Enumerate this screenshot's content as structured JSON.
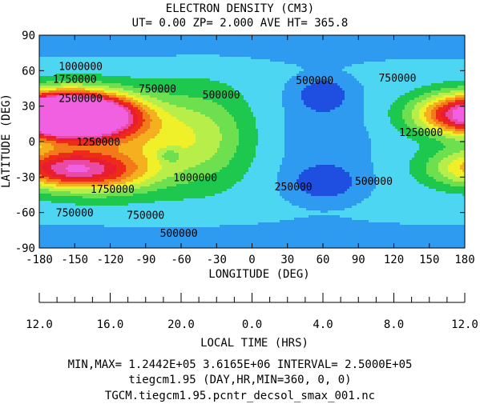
{
  "title": "ELECTRON DENSITY (CM3)",
  "subtitle": "UT= 0.00 ZP=  2.000 AVE HT= 365.8",
  "chart_data": {
    "type": "contour",
    "ylabel": "LATITUDE (DEG)",
    "xlabel": "LONGITUDE (DEG)",
    "xlim": [
      -180,
      180
    ],
    "ylim": [
      -90,
      90
    ],
    "x_ticks": [
      "-180",
      "-150",
      "-120",
      "-90",
      "-60",
      "-30",
      "0",
      "30",
      "60",
      "90",
      "120",
      "150",
      "180"
    ],
    "y_ticks": [
      "90",
      "60",
      "30",
      "0",
      "-30",
      "-60",
      "-90"
    ],
    "lt_label": "LOCAL TIME (HRS)",
    "lt_ticks": [
      "12.0",
      "16.0",
      "20.0",
      "0.0",
      "4.0",
      "8.0",
      "12.0"
    ],
    "contour_labels": [
      {
        "text": "1000000",
        "lon": -145,
        "lat": 64
      },
      {
        "text": "1750000",
        "lon": -150,
        "lat": 53
      },
      {
        "text": "2500000",
        "lon": -145,
        "lat": 37
      },
      {
        "text": "750000",
        "lon": -80,
        "lat": 45
      },
      {
        "text": "500000",
        "lon": -26,
        "lat": 40
      },
      {
        "text": "500000",
        "lon": 53,
        "lat": 52
      },
      {
        "text": "1250000",
        "lon": -130,
        "lat": 0
      },
      {
        "text": "1000000",
        "lon": -48,
        "lat": -30
      },
      {
        "text": "1750000",
        "lon": -118,
        "lat": -40
      },
      {
        "text": "250000",
        "lon": 35,
        "lat": -38
      },
      {
        "text": "750000",
        "lon": -150,
        "lat": -60
      },
      {
        "text": "750000",
        "lon": -90,
        "lat": -62
      },
      {
        "text": "500000",
        "lon": -62,
        "lat": -77
      },
      {
        "text": "750000",
        "lon": 123,
        "lat": 54
      },
      {
        "text": "1250000",
        "lon": 143,
        "lat": 8
      },
      {
        "text": "500000",
        "lon": 103,
        "lat": -33
      }
    ],
    "levels": [
      250000,
      500000,
      750000,
      1000000,
      1250000,
      1500000,
      1750000,
      2000000,
      2250000,
      2500000,
      2750000,
      3000000,
      3250000,
      3500000
    ],
    "level_colors": [
      "#1f4fe0",
      "#2f9bf0",
      "#4dd6f2",
      "#1ec84f",
      "#6ee04f",
      "#b8ee4a",
      "#f0f02a",
      "#f5b020",
      "#f27a18",
      "#ee2a18",
      "#e81e2e",
      "#e84aa6",
      "#f060e0",
      "#f060e0"
    ]
  },
  "footer": {
    "minmax": "MIN,MAX=  1.2442E+05  3.6165E+06 INTERVAL=  2.5000E+05",
    "model": "tiegcm1.95  (DAY,HR,MIN=360, 0, 0)",
    "file": "TGCM.tiegcm1.95.pcntr_decsol_smax_001.nc"
  }
}
